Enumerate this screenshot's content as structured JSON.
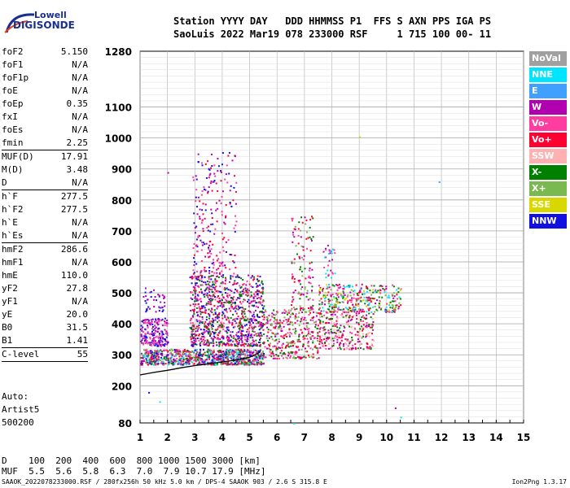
{
  "logo": {
    "line1": "Lowell",
    "line2": "DIGISONDE"
  },
  "header": {
    "line1": "Station YYYY DAY   DDD HHMMSS P1  FFS S AXN PPS IGA PS",
    "line2": "SaoLuis 2022 Mar19 078 233000 RSF     1 715 100 00- 11"
  },
  "params": [
    {
      "label": "foF2",
      "value": "5.150"
    },
    {
      "label": "foF1",
      "value": "N/A"
    },
    {
      "label": "foF1p",
      "value": "N/A"
    },
    {
      "label": "foE",
      "value": "N/A"
    },
    {
      "label": "foEp",
      "value": "0.35"
    },
    {
      "label": "fxI",
      "value": "N/A"
    },
    {
      "label": "foEs",
      "value": "N/A"
    },
    {
      "label": "fmin",
      "value": "2.25",
      "sep": true
    },
    {
      "label": "MUF(D)",
      "value": "17.91"
    },
    {
      "label": "M(D)",
      "value": "3.48"
    },
    {
      "label": "D",
      "value": "N/A",
      "sep": true
    },
    {
      "label": "h`F",
      "value": "277.5"
    },
    {
      "label": "h`F2",
      "value": "277.5"
    },
    {
      "label": "h`E",
      "value": "N/A"
    },
    {
      "label": "h`Es",
      "value": "N/A",
      "sep": true
    },
    {
      "label": "hmF2",
      "value": "286.6"
    },
    {
      "label": "hmF1",
      "value": "N/A"
    },
    {
      "label": "hmE",
      "value": "110.0"
    },
    {
      "label": "yF2",
      "value": "27.8"
    },
    {
      "label": "yF1",
      "value": "N/A"
    },
    {
      "label": "yE",
      "value": "20.0"
    },
    {
      "label": "B0",
      "value": "31.5"
    },
    {
      "label": "B1",
      "value": "1.41",
      "sep": true
    },
    {
      "label": "C-level",
      "value": "55",
      "sep": true
    }
  ],
  "auto": [
    "Auto:",
    "Artist5",
    "500200"
  ],
  "legend": [
    {
      "label": "NoVal",
      "color": "#a0a0a0"
    },
    {
      "label": "NNE",
      "color": "#00e5ff"
    },
    {
      "label": "E",
      "color": "#3fa0ff"
    },
    {
      "label": "W",
      "color": "#b000b0"
    },
    {
      "label": "Vo-",
      "color": "#ff3ca0"
    },
    {
      "label": "Vo+",
      "color": "#ff0030"
    },
    {
      "label": "SSW",
      "color": "#ffb0b0"
    },
    {
      "label": "X-",
      "color": "#008000"
    },
    {
      "label": "X+",
      "color": "#7ab850"
    },
    {
      "label": "SSE",
      "color": "#d8d800"
    },
    {
      "label": "NNW",
      "color": "#1010e0"
    }
  ],
  "chart_data": {
    "type": "scatter",
    "xlim": [
      1,
      15
    ],
    "ylim": [
      80,
      1280
    ],
    "x_ticks": [
      "1",
      "2",
      "3",
      "4",
      "5",
      "6",
      "7",
      "8",
      "9",
      "10",
      "11",
      "12",
      "13",
      "14",
      "15"
    ],
    "y_ticks": [
      "80",
      "200",
      "300",
      "400",
      "500",
      "600",
      "700",
      "800",
      "900",
      "1000",
      "1100",
      "1280"
    ],
    "grid": true,
    "trace": {
      "x": [
        1.0,
        1.5,
        2.0,
        2.5,
        3.0,
        3.5,
        4.0,
        4.5,
        5.0,
        5.2,
        5.4
      ],
      "y": [
        235,
        243,
        250,
        258,
        265,
        271,
        277,
        283,
        292,
        300,
        310
      ]
    },
    "echo_clusters": [
      {
        "x": [
          1.0,
          5.5
        ],
        "y": [
          270,
          320
        ],
        "n": 900,
        "colors": [
          "Vo-",
          "Vo+",
          "NNW",
          "W",
          "X-",
          "X+",
          "NNE"
        ]
      },
      {
        "x": [
          1.0,
          2.0
        ],
        "y": [
          330,
          420
        ],
        "n": 200,
        "colors": [
          "NNW",
          "W",
          "Vo-"
        ]
      },
      {
        "x": [
          1.1,
          1.9
        ],
        "y": [
          440,
          520
        ],
        "n": 40,
        "colors": [
          "NNW",
          "W"
        ]
      },
      {
        "x": [
          2.8,
          5.5
        ],
        "y": [
          330,
          470
        ],
        "n": 650,
        "colors": [
          "W",
          "Vo-",
          "Vo+",
          "NNW",
          "X-"
        ]
      },
      {
        "x": [
          2.8,
          5.5
        ],
        "y": [
          470,
          560
        ],
        "n": 350,
        "colors": [
          "W",
          "Vo-",
          "Vo+",
          "NNW",
          "X-"
        ]
      },
      {
        "x": [
          2.9,
          4.5
        ],
        "y": [
          560,
          960
        ],
        "n": 220,
        "colors": [
          "W",
          "Vo-",
          "NNW",
          "Vo+"
        ]
      },
      {
        "x": [
          5.5,
          7.5
        ],
        "y": [
          290,
          450
        ],
        "n": 360,
        "colors": [
          "X-",
          "X+",
          "Vo+",
          "Vo-",
          "W"
        ]
      },
      {
        "x": [
          6.5,
          7.3
        ],
        "y": [
          450,
          750
        ],
        "n": 120,
        "colors": [
          "W",
          "Vo-",
          "X-",
          "Vo+",
          "X+"
        ]
      },
      {
        "x": [
          7.5,
          9.5
        ],
        "y": [
          320,
          450
        ],
        "n": 300,
        "colors": [
          "Vo+",
          "Vo-",
          "W",
          "X-",
          "SSW"
        ]
      },
      {
        "x": [
          7.5,
          10.5
        ],
        "y": [
          440,
          530
        ],
        "n": 350,
        "colors": [
          "SSE",
          "X+",
          "X-",
          "W",
          "Vo+",
          "Vo-",
          "NNE"
        ]
      },
      {
        "x": [
          7.6,
          8.1
        ],
        "y": [
          550,
          660
        ],
        "n": 30,
        "colors": [
          "W",
          "Vo-",
          "NNE"
        ]
      }
    ]
  },
  "bottom": {
    "line1": "D    100  200  400  600  800 1000 1500 3000 [km]",
    "line2": "MUF  5.5  5.6  5.8  6.3  7.0  7.9 10.7 17.9 [MHz]"
  },
  "footer": {
    "left": "SAAOK_2022078233000.RSF / 280fx256h 50 kHz 5.0 km / DPS-4 SAAOK 903 / 2.6 S 315.8 E",
    "right": "Ion2Png 1.3.17"
  }
}
